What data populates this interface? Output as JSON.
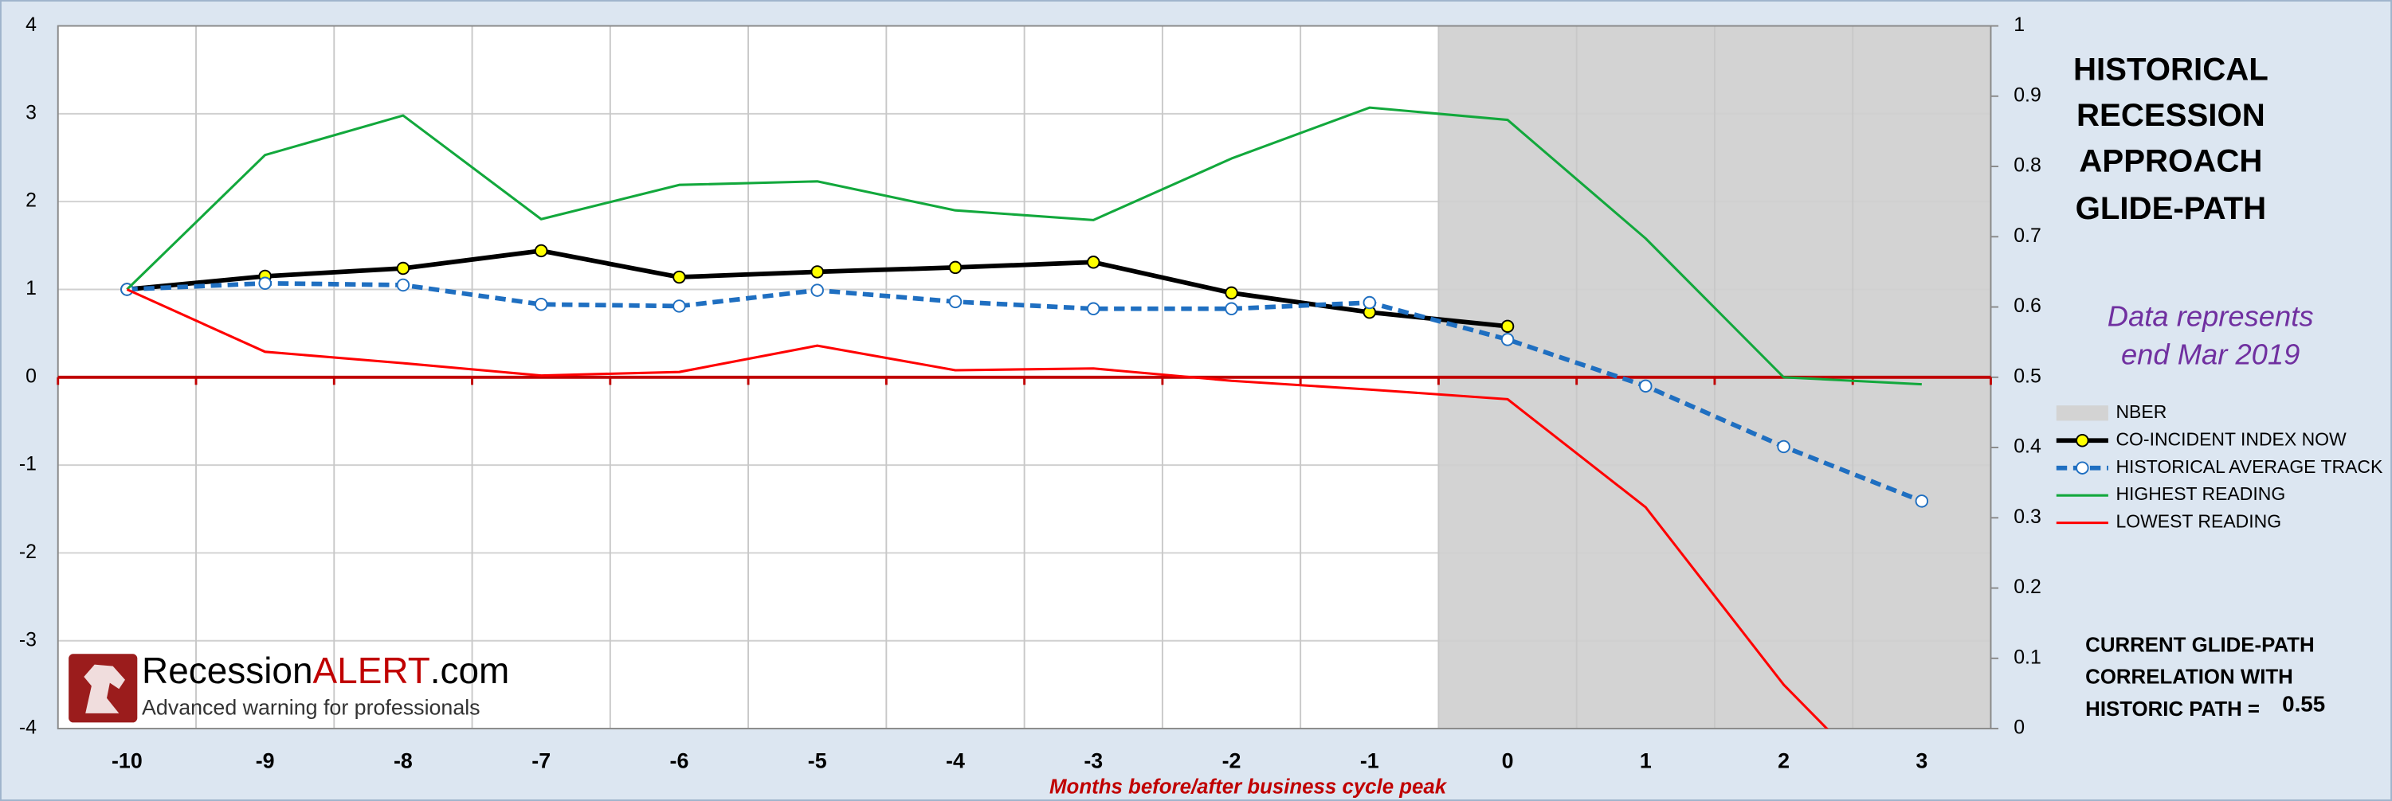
{
  "chart_data": {
    "type": "line",
    "title": [
      "HISTORICAL",
      "RECESSION",
      "APPROACH",
      "GLIDE-PATH"
    ],
    "annotation": [
      "Data represents",
      "end Mar 2019"
    ],
    "correlation_label": [
      "CURRENT GLIDE-PATH",
      "CORRELATION WITH",
      "HISTORIC PATH ="
    ],
    "correlation": 0.55,
    "x_label": "Months before/after business cycle peak",
    "logo": {
      "name": "Recession",
      "highlight": "ALERT",
      "suffix": ".com",
      "tagline": "Advanced warning for professionals"
    },
    "categories": [
      "-10",
      "-9",
      "-8",
      "-7",
      "-6",
      "-5",
      "-4",
      "-3",
      "-2",
      "-1",
      "0",
      "1",
      "2",
      "3"
    ],
    "ylim": [
      -4,
      4
    ],
    "yticks": [
      -4,
      -3,
      -2,
      -1,
      0,
      1,
      2,
      3,
      4
    ],
    "y2lim": [
      0,
      1
    ],
    "y2ticks": [
      0,
      0.1,
      0.2,
      0.3,
      0.4,
      0.5,
      0.6,
      0.7,
      0.8,
      0.9,
      1
    ],
    "grid": true,
    "series": [
      {
        "name": "NBER",
        "style": "bar",
        "axis": "y2",
        "color": "#d3d3d3",
        "values": [
          null,
          null,
          null,
          null,
          null,
          null,
          null,
          null,
          null,
          null,
          1,
          1,
          1,
          1
        ]
      },
      {
        "name": "CO-INCIDENT INDEX NOW",
        "style": "line",
        "color": "#000000",
        "width": 3,
        "marker_fill": "#ffff00",
        "values": [
          1.0,
          1.15,
          1.24,
          1.44,
          1.14,
          1.2,
          1.25,
          1.31,
          0.96,
          0.74,
          0.58,
          null,
          null,
          null
        ]
      },
      {
        "name": "HISTORICAL AVERAGE TRACK",
        "style": "line",
        "color": "#1f6fc1",
        "width": 3,
        "dash": true,
        "marker_fill": "#ffffff",
        "values": [
          1.0,
          1.07,
          1.05,
          0.83,
          0.81,
          0.99,
          0.86,
          0.78,
          0.78,
          0.85,
          0.43,
          -0.1,
          -0.79,
          -1.41
        ]
      },
      {
        "name": "HIGHEST READING",
        "style": "line",
        "color": "#12a83c",
        "width": 1.6,
        "values": [
          1.0,
          2.53,
          2.98,
          1.8,
          2.19,
          2.23,
          1.9,
          1.79,
          2.49,
          3.07,
          2.93,
          1.58,
          0.0,
          -0.08
        ]
      },
      {
        "name": "LOWEST READING",
        "style": "line",
        "color": "#ff0000",
        "width": 1.6,
        "values": [
          1.0,
          0.29,
          0.16,
          0.02,
          0.06,
          0.36,
          0.08,
          0.1,
          -0.04,
          -0.14,
          -0.25,
          -1.48,
          -3.5,
          -5.1
        ]
      }
    ]
  }
}
